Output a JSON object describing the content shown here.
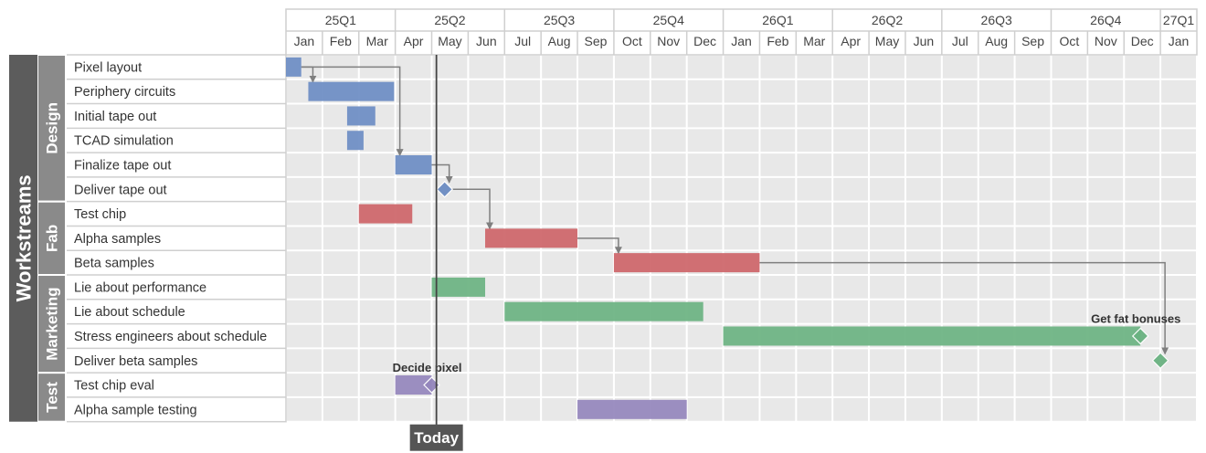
{
  "chart_data": {
    "type": "gantt",
    "title": "",
    "quarters": [
      "25Q1",
      "25Q2",
      "25Q3",
      "25Q4",
      "26Q1",
      "26Q2",
      "26Q3",
      "26Q4",
      "27Q1"
    ],
    "months": [
      {
        "label": "Jan",
        "date": "2025-01"
      },
      {
        "label": "Feb",
        "date": "2025-02"
      },
      {
        "label": "Mar",
        "date": "2025-03"
      },
      {
        "label": "Apr",
        "date": "2025-04"
      },
      {
        "label": "May",
        "date": "2025-05"
      },
      {
        "label": "Jun",
        "date": "2025-06"
      },
      {
        "label": "Jul",
        "date": "2025-07"
      },
      {
        "label": "Aug",
        "date": "2025-08"
      },
      {
        "label": "Sep",
        "date": "2025-09"
      },
      {
        "label": "Oct",
        "date": "2025-10"
      },
      {
        "label": "Nov",
        "date": "2025-11"
      },
      {
        "label": "Dec",
        "date": "2025-12"
      },
      {
        "label": "Jan",
        "date": "2026-01"
      },
      {
        "label": "Feb",
        "date": "2026-02"
      },
      {
        "label": "Mar",
        "date": "2026-03"
      },
      {
        "label": "Apr",
        "date": "2026-04"
      },
      {
        "label": "May",
        "date": "2026-05"
      },
      {
        "label": "Jun",
        "date": "2026-06"
      },
      {
        "label": "Jul",
        "date": "2026-07"
      },
      {
        "label": "Aug",
        "date": "2026-08"
      },
      {
        "label": "Sep",
        "date": "2026-09"
      },
      {
        "label": "Oct",
        "date": "2026-10"
      },
      {
        "label": "Nov",
        "date": "2026-11"
      },
      {
        "label": "Dec",
        "date": "2026-12"
      },
      {
        "label": "Jan",
        "date": "2027-01"
      }
    ],
    "group_title": "Workstreams",
    "groups": [
      {
        "name": "Design",
        "color": "#6b8cc3",
        "tasks": [
          {
            "name": "Pixel layout",
            "start": "2025-01-01",
            "end": "2025-01-14"
          },
          {
            "name": "Periphery circuits",
            "start": "2025-01-20",
            "end": "2025-03-31"
          },
          {
            "name": "Initial tape out",
            "start": "2025-02-20",
            "end": "2025-03-15"
          },
          {
            "name": "TCAD simulation",
            "start": "2025-02-20",
            "end": "2025-03-05"
          },
          {
            "name": "Finalize tape out",
            "start": "2025-04-01",
            "end": "2025-05-01"
          },
          {
            "name": "Deliver tape out",
            "milestone": "2025-05-12"
          }
        ]
      },
      {
        "name": "Fab",
        "color": "#cd6468",
        "tasks": [
          {
            "name": "Test chip",
            "start": "2025-03-01",
            "end": "2025-04-15"
          },
          {
            "name": "Alpha samples",
            "start": "2025-06-15",
            "end": "2025-09-01"
          },
          {
            "name": "Beta samples",
            "start": "2025-10-01",
            "end": "2026-02-01"
          }
        ]
      },
      {
        "name": "Marketing",
        "color": "#6ab281",
        "tasks": [
          {
            "name": "Lie about performance",
            "start": "2025-05-01",
            "end": "2025-06-15"
          },
          {
            "name": "Lie about schedule",
            "start": "2025-07-01",
            "end": "2025-12-15"
          },
          {
            "name": "Stress engineers about schedule",
            "start": "2026-01-01",
            "end": "2026-12-15",
            "milestone": "2026-12-15",
            "label": "Get fat bonuses"
          },
          {
            "name": "Deliver beta samples",
            "milestone": "2027-01-01"
          }
        ]
      },
      {
        "name": "Test",
        "color": "#9486bc",
        "tasks": [
          {
            "name": "Test chip eval",
            "start": "2025-04-01",
            "end": "2025-05-01",
            "milestone": "2025-05-01",
            "label": "Decide pixel"
          },
          {
            "name": "Alpha sample testing",
            "start": "2025-09-01",
            "end": "2025-12-01"
          }
        ]
      }
    ],
    "dependencies": [
      {
        "from": "Pixel layout",
        "to": "Periphery circuits"
      },
      {
        "from": "Pixel layout",
        "to": "Finalize tape out"
      },
      {
        "from": "Finalize tape out",
        "to": "Deliver tape out"
      },
      {
        "from": "Deliver tape out",
        "to": "Alpha samples"
      },
      {
        "from": "Alpha samples",
        "to": "Beta samples"
      },
      {
        "from": "Beta samples",
        "to": "Deliver beta samples"
      }
    ],
    "today": {
      "label": "Today",
      "date": "2025-05-05"
    }
  }
}
